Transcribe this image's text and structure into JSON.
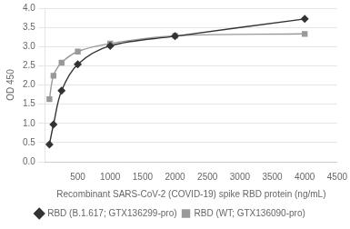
{
  "chart_data": {
    "type": "scatter",
    "x_label": "Recombinant SARS-CoV-2 (COVID-19) spike RBD protein (ng/mL)",
    "y_label": "OD 450",
    "x": [
      62.5,
      125,
      250,
      500,
      1000,
      2000,
      4000
    ],
    "series": [
      {
        "name": "RBD (B.1.617; GTX136299-pro)",
        "color": "#333333",
        "marker": "diamond",
        "line_style": "solid",
        "values": [
          0.45,
          0.97,
          1.85,
          2.54,
          3.02,
          3.27,
          3.72
        ]
      },
      {
        "name": "RBD (WT; GTX136090-pro)",
        "color": "#999999",
        "marker": "square",
        "line_style": "solid",
        "values": [
          1.63,
          2.24,
          2.58,
          2.87,
          3.08,
          3.28,
          3.33
        ]
      }
    ],
    "xlim": [
      0,
      4500
    ],
    "ylim": [
      0,
      4.0
    ],
    "xticks": [
      500,
      1000,
      1500,
      2000,
      2500,
      3000,
      3500,
      4000,
      4500
    ],
    "yticks": [
      {
        "value": 0,
        "label": "0.0"
      },
      0.5,
      {
        "value": 1.0,
        "label": "1.0"
      },
      1.5,
      {
        "value": 2.0,
        "label": "2.0"
      },
      2.5,
      {
        "value": 3.0,
        "label": "3.0"
      },
      3.5,
      {
        "value": 4.0,
        "label": "4.0"
      }
    ],
    "grid": "y",
    "legend": "bottom"
  }
}
